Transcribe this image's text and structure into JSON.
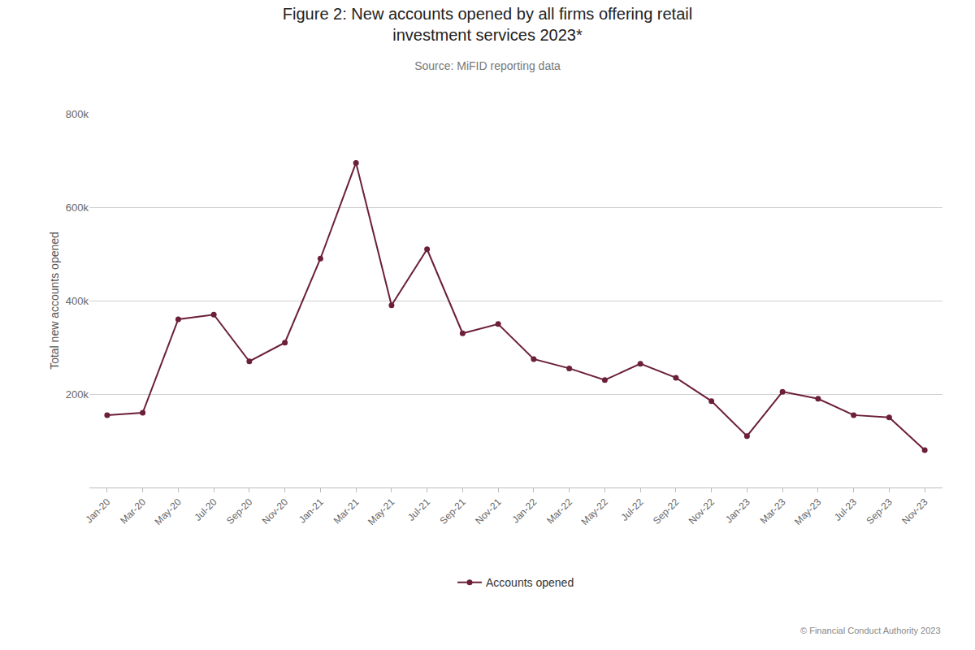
{
  "chart_data": {
    "type": "line",
    "title": "Figure 2: New accounts opened by all firms offering retail\ninvestment services 2023*",
    "subtitle": "Source: MiFID reporting data",
    "ylabel": "Total new accounts opened",
    "annotations": [
      "© Financial Conduct Authority 2023"
    ],
    "categories": [
      "Jan-20",
      "Mar-20",
      "May-20",
      "Jul-20",
      "Sep-20",
      "Nov-20",
      "Jan-21",
      "Mar-21",
      "May-21",
      "Jul-21",
      "Sep-21",
      "Nov-21",
      "Jan-22",
      "Mar-22",
      "May-22",
      "Jul-22",
      "Sep-22",
      "Nov-22",
      "Jan-23",
      "Mar-23",
      "May-23",
      "Jul-23",
      "Sep-23",
      "Nov-23"
    ],
    "series": [
      {
        "name": "Accounts opened",
        "color": "#6B1F3A",
        "marker": "circle",
        "values": [
          155000,
          160000,
          360000,
          370000,
          270000,
          310000,
          490000,
          695000,
          390000,
          510000,
          330000,
          350000,
          275000,
          255000,
          230000,
          265000,
          235000,
          185000,
          110000,
          205000,
          190000,
          155000,
          150000,
          80000
        ]
      }
    ],
    "ylim": [
      0,
      800000
    ],
    "yticks": [
      {
        "value": 200000,
        "label": "200k"
      },
      {
        "value": 400000,
        "label": "400k"
      },
      {
        "value": 600000,
        "label": "600k"
      },
      {
        "value": 800000,
        "label": "800k"
      }
    ],
    "grid": true,
    "legend": "bottom"
  }
}
